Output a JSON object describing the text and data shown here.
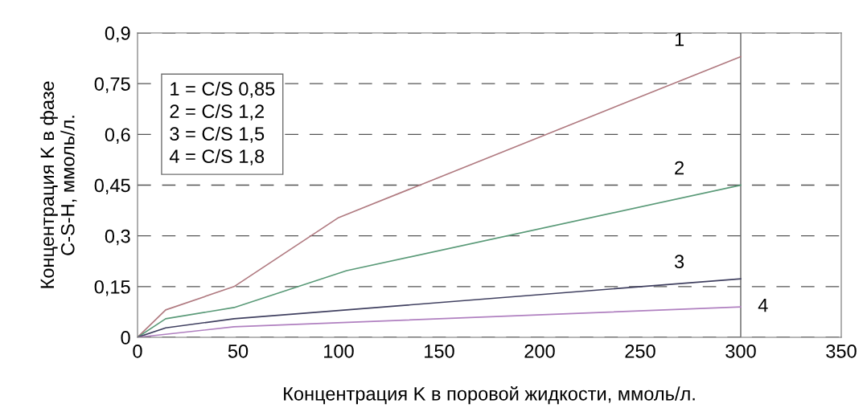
{
  "chart_data": {
    "type": "line",
    "xlabel": "Концентрация K в поровой жидкости, ммоль/л.",
    "ylabel": "Концентрация K в фазе\nC-S-H, ммоль/л.",
    "xlim": [
      0,
      350
    ],
    "xticks": [
      0,
      50,
      100,
      150,
      200,
      250,
      300,
      350
    ],
    "ylim": [
      0,
      0.9
    ],
    "yticks": [
      {
        "value": 0,
        "label": "0"
      },
      {
        "value": 0.15,
        "label": "0,15"
      },
      {
        "value": 0.3,
        "label": "0,3"
      },
      {
        "value": 0.45,
        "label": "0,45"
      },
      {
        "value": 0.6,
        "label": "0,6"
      },
      {
        "value": 0.75,
        "label": "0,75"
      },
      {
        "value": 0.9,
        "label": "0,9"
      }
    ],
    "grid": "y",
    "line_style": "solid",
    "marker": "none",
    "ref_lines": [
      {
        "axis": "x",
        "value": 300,
        "color": "#606060",
        "line_style": "solid"
      }
    ],
    "series": [
      {
        "name": "1",
        "color": "#b07a80",
        "x": [
          0,
          14,
          48,
          100,
          300
        ],
        "values": [
          0,
          0.081,
          0.15,
          0.354,
          0.83
        ]
      },
      {
        "name": "2",
        "color": "#5a9a78",
        "x": [
          0,
          14,
          48,
          104,
          300
        ],
        "values": [
          0,
          0.055,
          0.088,
          0.197,
          0.45
        ]
      },
      {
        "name": "3",
        "color": "#404060",
        "x": [
          0,
          14,
          48,
          300
        ],
        "values": [
          0,
          0.028,
          0.055,
          0.173
        ]
      },
      {
        "name": "4",
        "color": "#b080c0",
        "x": [
          0,
          48,
          300
        ],
        "values": [
          0,
          0.031,
          0.09
        ]
      }
    ],
    "annotations": [
      "1 = C/S 0,85\n2 = C/S 1,2\n3 = C/S 1,5\n4 = C/S 1,8"
    ]
  }
}
